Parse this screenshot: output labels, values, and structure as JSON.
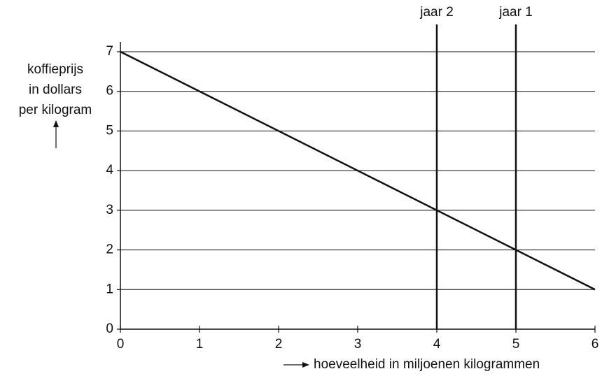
{
  "chart_data": {
    "type": "line",
    "ylabel": [
      "koffieprijs",
      "in dollars",
      "per kilogram"
    ],
    "xlabel": "hoeveelheid in miljoenen kilogrammen",
    "x": [
      0,
      6
    ],
    "series": [
      {
        "color": "#111111",
        "values": [
          7,
          1
        ]
      }
    ],
    "xlim": [
      0,
      6
    ],
    "xticks": [
      0,
      1,
      2,
      3,
      4,
      5,
      6
    ],
    "ylim": [
      0,
      7
    ],
    "yticks": [
      0,
      1,
      2,
      3,
      4,
      5,
      6,
      7
    ],
    "grid": true,
    "vlines": [
      {
        "x": 4,
        "label": "jaar 2"
      },
      {
        "x": 5,
        "label": "jaar 1"
      }
    ]
  }
}
